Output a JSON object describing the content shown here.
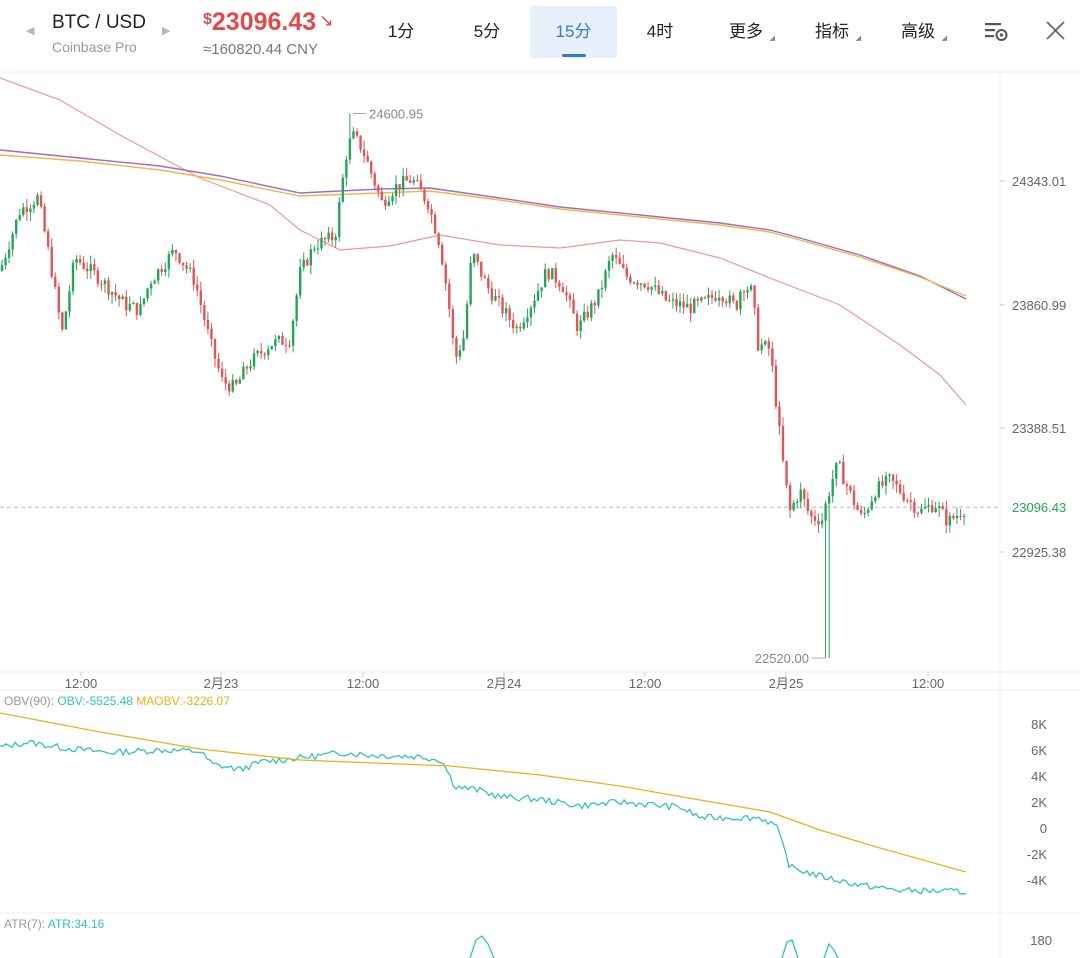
{
  "header": {
    "pair": "BTC / USD",
    "exchange": "Coinbase Pro",
    "price_currency": "$",
    "price": "23096.43",
    "price_cny": "≈160820.44 CNY",
    "price_color": "#e04a4a",
    "prev_icon": "triangle-left-icon",
    "next_icon": "triangle-right-icon",
    "trend_icon": "arrow-down-right-icon",
    "tabs": [
      {
        "label": "1分",
        "active": false
      },
      {
        "label": "5分",
        "active": false
      },
      {
        "label": "15分",
        "active": true
      },
      {
        "label": "4时",
        "active": false
      },
      {
        "label": "更多",
        "active": false
      },
      {
        "label": "指标",
        "active": false
      },
      {
        "label": "高级",
        "active": false
      }
    ],
    "settings_icon": "chart-settings-icon",
    "close_icon": "close-icon"
  },
  "chart_data": [
    {
      "type": "candlestick",
      "x_tick_labels": [
        "12:00",
        "2月23",
        "12:00",
        "2月24",
        "12:00",
        "2月25",
        "12:00"
      ],
      "y_tick_labels": [
        "24343.01",
        "23860.99",
        "23388.51",
        "22925.38"
      ],
      "current_price_label": "23096.43",
      "high_label": "24600.95",
      "low_label": "22520.00",
      "ylim": [
        22460,
        24720
      ],
      "colors": {
        "up": "#27a35c",
        "down": "#e05555",
        "ma_red": "#ec9a92",
        "ma_purple": "#9b6fc0",
        "ma_orange": "#f2b44a"
      }
    },
    {
      "type": "line",
      "indicator": "OBV(90)",
      "legend": [
        {
          "name": "OBV:-5525.48",
          "color": "#36c2ba"
        },
        {
          "name": "MAOBV:-3226.07",
          "color": "#e7b21f"
        }
      ],
      "y_tick_labels": [
        "8K",
        "6K",
        "4K",
        "2K",
        "0",
        "-2K",
        "-4K"
      ],
      "ylim": [
        -4000,
        8000
      ]
    },
    {
      "type": "line",
      "indicator": "ATR(7)",
      "legend": [
        {
          "name": "ATR:34.16",
          "color": "#36c2ba"
        }
      ],
      "y_tick_labels": [
        "180"
      ]
    }
  ]
}
